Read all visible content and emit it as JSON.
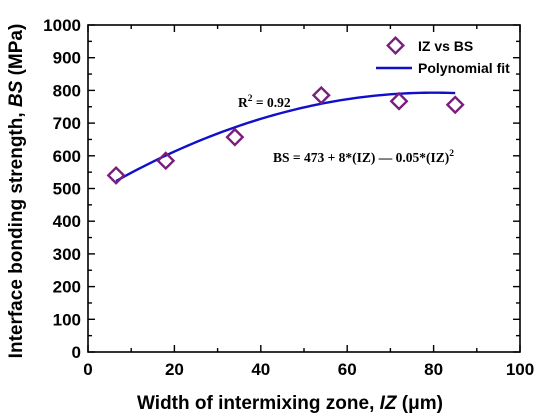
{
  "chart_data": {
    "type": "scatter",
    "xlabel": {
      "prefix": "Width of intermixing zone, ",
      "var": "IZ",
      "unit": " (μm)"
    },
    "ylabel": {
      "prefix": "Interface bonding strength, ",
      "var": "BS",
      "unit": " (MPa)"
    },
    "xlim": [
      0,
      100
    ],
    "ylim": [
      0,
      1000
    ],
    "xticks": [
      0,
      20,
      40,
      60,
      80,
      100
    ],
    "yticks": [
      0,
      100,
      200,
      300,
      400,
      500,
      600,
      700,
      800,
      900,
      1000
    ],
    "grid": false,
    "legend_position": "top-right",
    "series": [
      {
        "name": "IZ vs BS",
        "marker": "diamond-open",
        "color": "#7a1e7e",
        "x": [
          6.5,
          18,
          34,
          54,
          72,
          85
        ],
        "y": [
          540,
          585,
          657,
          785,
          767,
          756
        ]
      },
      {
        "name": "Polynomial fit",
        "line": "solid",
        "color": "#1010cc",
        "x_range": [
          6.5,
          85
        ],
        "fit": {
          "c0": 473,
          "c1": 8,
          "c2": -0.05
        }
      }
    ],
    "annotations": {
      "r2": {
        "base": "R",
        "exp": "2",
        "rest": " = 0.92"
      },
      "equation": {
        "main": "BS = 473 + 8*(IZ) — 0.05*(IZ)",
        "exp": "2"
      }
    }
  }
}
